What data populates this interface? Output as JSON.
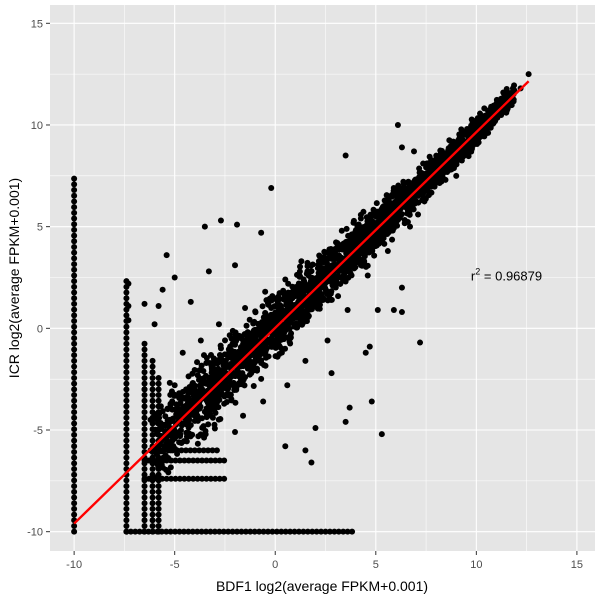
{
  "chart_data": {
    "type": "scatter",
    "xlabel": "BDF1 log2(average FPKM+0.001)",
    "ylabel": "ICR log2(average FPKM+0.001)",
    "xlim": [
      -11.2,
      15.9
    ],
    "ylim": [
      -10.95,
      15.9
    ],
    "x_ticks": [
      -10,
      -5,
      0,
      5,
      10,
      15
    ],
    "y_ticks": [
      -10,
      -5,
      0,
      5,
      10,
      15
    ],
    "x_tick_labels": [
      "-10",
      "-5",
      "0",
      "5",
      "10",
      "15"
    ],
    "y_tick_labels": [
      "-10",
      "-5",
      "0",
      "5",
      "10",
      "15"
    ],
    "grid": true,
    "colors": {
      "points": "#000000",
      "fit_line": "#ff0000",
      "panel": "#e5e5e5",
      "grid": "#ffffff"
    },
    "fit_line": {
      "x": [
        -10,
        12.6
      ],
      "y": [
        -9.6,
        12.15
      ]
    },
    "annotation": {
      "base": "r",
      "sup": "2",
      "text": " = 0.96879",
      "x": 11.5,
      "y": 2.35
    },
    "series": [
      {
        "points": [
          [
            12.6,
            12.5
          ],
          [
            12.2,
            11.8
          ],
          [
            11.6,
            11.3
          ],
          [
            11.1,
            11.2
          ],
          [
            11.8,
            11.6
          ],
          [
            6.1,
            10.0
          ],
          [
            3.5,
            8.5
          ],
          [
            6.3,
            8.9
          ],
          [
            6.9,
            8.7
          ],
          [
            9.0,
            7.5
          ],
          [
            -0.2,
            6.9
          ],
          [
            -2.7,
            5.3
          ],
          [
            -1.9,
            5.1
          ],
          [
            -0.7,
            4.7
          ],
          [
            -3.5,
            5.0
          ],
          [
            -5.4,
            3.6
          ],
          [
            -3.3,
            2.8
          ],
          [
            -2.0,
            3.1
          ],
          [
            -5.6,
            1.9
          ],
          [
            -5.8,
            1.1
          ],
          [
            -6.5,
            1.2
          ],
          [
            -6.0,
            0.2
          ],
          [
            -7.3,
            2.2
          ],
          [
            -7.3,
            1.1
          ],
          [
            -7.3,
            0.4
          ],
          [
            -5.0,
            2.5
          ],
          [
            -4.2,
            1.3
          ],
          [
            1.3,
            3.3
          ],
          [
            3.5,
            2.3
          ],
          [
            7.1,
            5.6
          ],
          [
            8.5,
            8.0
          ],
          [
            5.3,
            -5.2
          ],
          [
            3.7,
            -3.9
          ],
          [
            7.2,
            -0.7
          ],
          [
            5.9,
            0.9
          ],
          [
            6.3,
            0.8
          ],
          [
            5.1,
            0.9
          ],
          [
            1.5,
            -6.0
          ],
          [
            0.5,
            -5.8
          ],
          [
            3.5,
            -4.6
          ],
          [
            1.8,
            -6.6
          ],
          [
            -2.0,
            -5.1
          ],
          [
            -6.2,
            -4.5
          ],
          [
            -6.5,
            -3.0
          ],
          [
            2.0,
            -4.9
          ],
          [
            4.8,
            -3.6
          ],
          [
            2.8,
            -2.2
          ],
          [
            4.5,
            -1.2
          ],
          [
            4.7,
            -0.9
          ],
          [
            6.3,
            2.0
          ],
          [
            10.5,
            9.6
          ],
          [
            9.9,
            9.8
          ],
          [
            8.3,
            8.2
          ],
          [
            7.4,
            7.4
          ],
          [
            3.2,
            4.1
          ],
          [
            -4.6,
            -1.2
          ],
          [
            -3.7,
            -0.6
          ],
          [
            -2.8,
            0.2
          ],
          [
            -1.5,
            1.0
          ],
          [
            -0.5,
            1.8
          ],
          [
            0.5,
            2.4
          ],
          [
            1.6,
            2.8
          ],
          [
            2.4,
            3.5
          ],
          [
            -5.0,
            -2.8
          ],
          [
            -4.2,
            -3.9
          ],
          [
            -3.1,
            -4.4
          ],
          [
            -1.6,
            -4.3
          ],
          [
            -0.6,
            -3.6
          ],
          [
            0.6,
            -2.8
          ],
          [
            1.5,
            -1.6
          ],
          [
            2.6,
            -0.6
          ],
          [
            3.6,
            0.9
          ],
          [
            4.6,
            2.6
          ],
          [
            5.6,
            3.8
          ],
          [
            6.7,
            5.0
          ]
        ]
      }
    ],
    "vertical_strips": [
      {
        "x": -10.0,
        "y_from": -10.0,
        "y_to": 7.5
      },
      {
        "x": -7.4,
        "y_from": -10.0,
        "y_to": 2.4
      },
      {
        "x": -6.5,
        "y_from": -10.0,
        "y_to": -0.6
      },
      {
        "x": -6.1,
        "y_from": -10.0,
        "y_to": -1.4
      },
      {
        "x": -5.8,
        "y_from": -10.0,
        "y_to": -2.2
      }
    ],
    "horizontal_strips": [
      {
        "y": -10.0,
        "x_from": -7.4,
        "x_to": 3.9
      },
      {
        "y": -7.4,
        "x_from": -6.5,
        "x_to": -2.5
      },
      {
        "y": -6.5,
        "x_from": -6.5,
        "x_to": -2.5
      },
      {
        "y": -6.0,
        "x_from": -6.2,
        "x_to": -2.8
      }
    ],
    "dense_band": {
      "x_from": -6.0,
      "x_to": 11.9,
      "slope": 0.965,
      "intercept": 0.05,
      "spread_low": 0.7,
      "spread_high": 3.0
    }
  }
}
